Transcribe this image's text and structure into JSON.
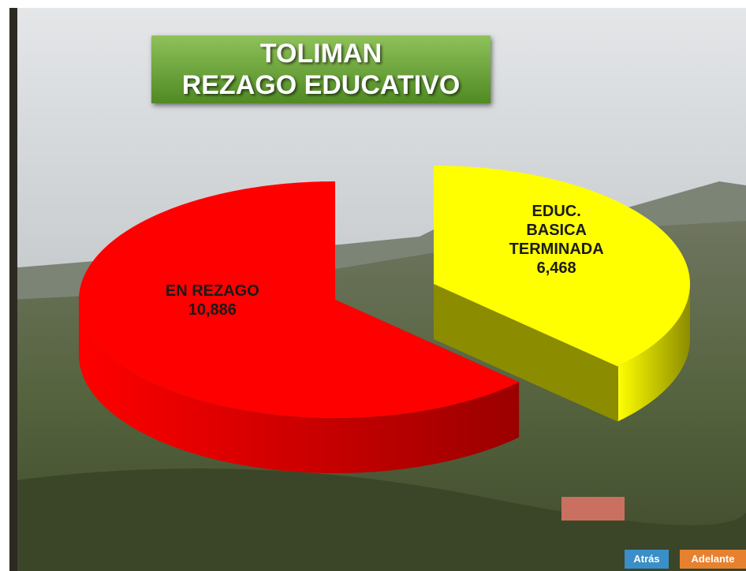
{
  "chart_data": {
    "type": "pie3d",
    "title": "TOLIMAN",
    "subtitle": "REZAGO EDUCATIVO",
    "categories": [
      "EN REZAGO",
      "EDUC. BASICA TERMINADA"
    ],
    "values": [
      10886,
      6468
    ],
    "value_labels": [
      "10,886",
      "6,468"
    ],
    "colors": [
      "#ff0000",
      "#ffff00"
    ],
    "exploded": [
      false,
      true
    ]
  },
  "nav": {
    "back": "Atrás",
    "next": "Adelante"
  }
}
